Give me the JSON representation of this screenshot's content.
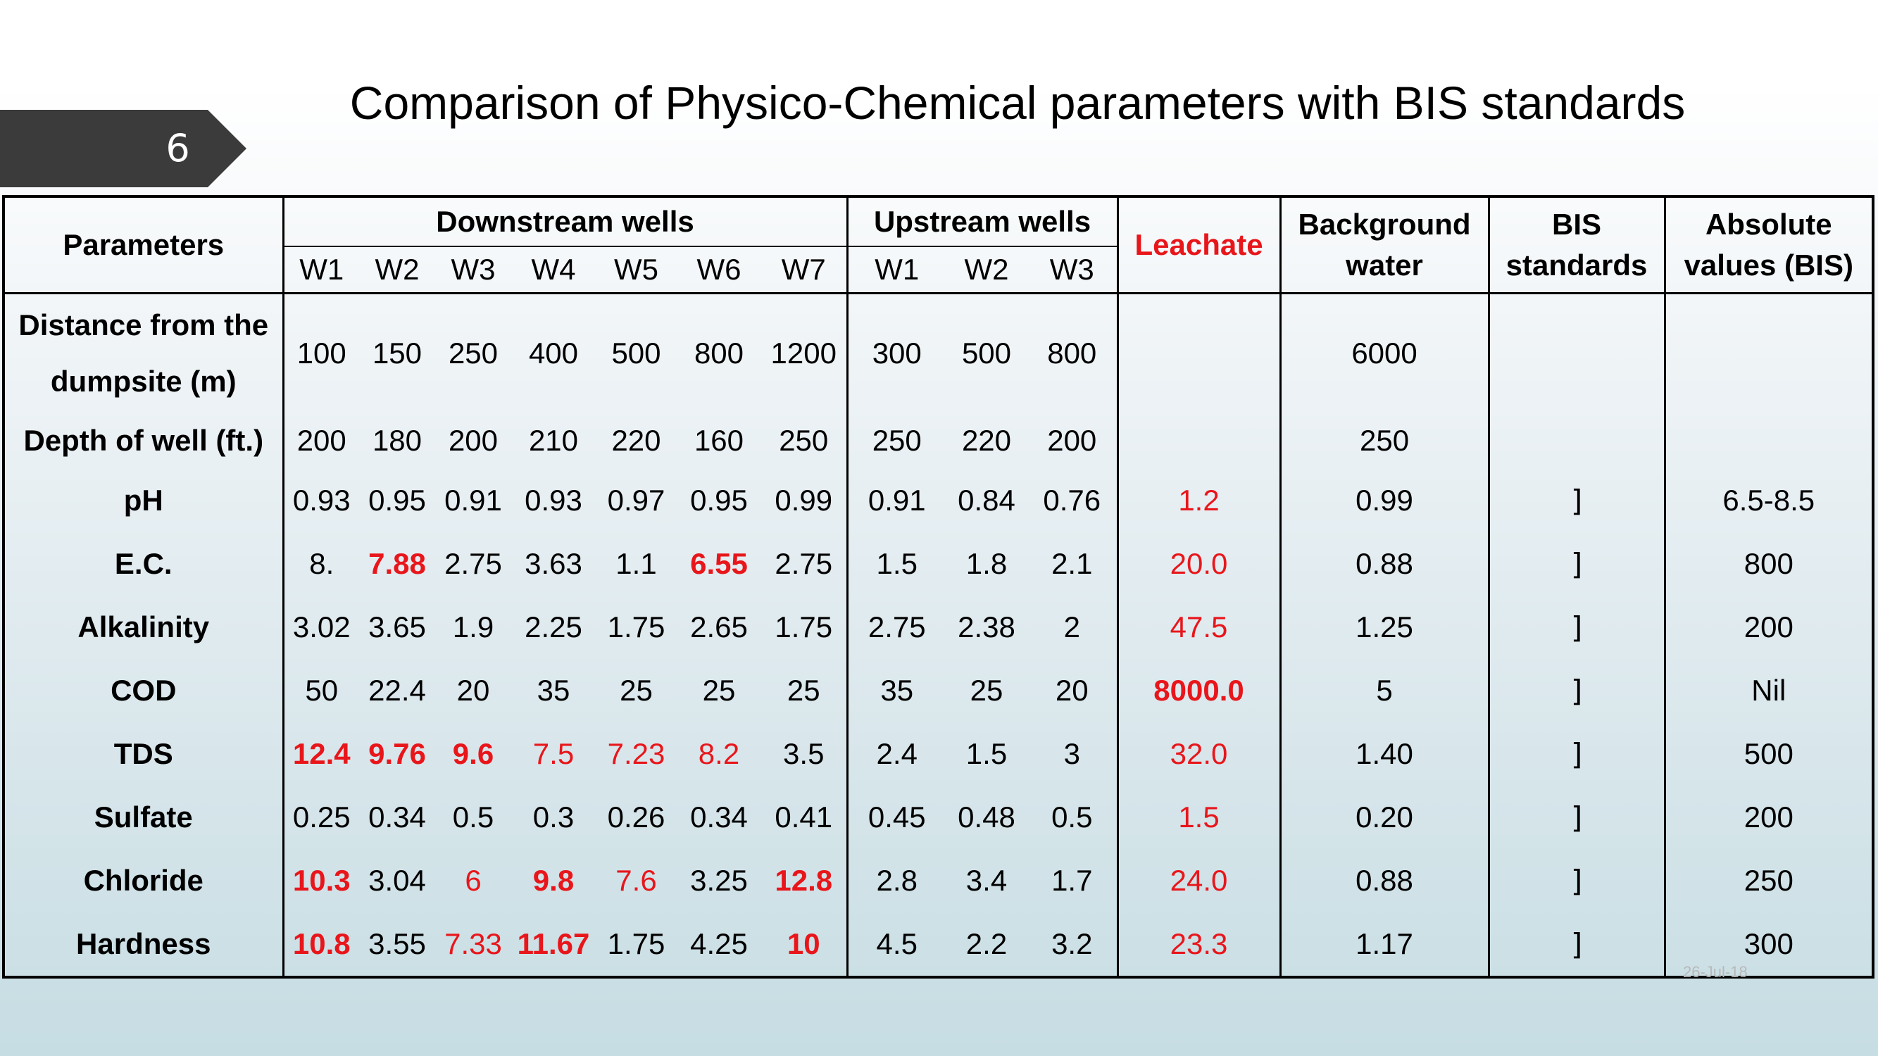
{
  "slide": {
    "number": "6",
    "title": "Comparison of Physico-Chemical parameters with BIS standards",
    "date": "26-Jul-18"
  },
  "colors": {
    "highlight": "#e8161b",
    "badge": "#3b3b3b"
  },
  "table": {
    "group_headers": {
      "parameters": "Parameters",
      "downstream": "Downstream wells",
      "upstream": "Upstream wells",
      "leachate": "Leachate",
      "background": "Background water",
      "bis": "BIS standards",
      "absolute": "Absolute values (BIS)"
    },
    "downstream_wells": [
      "W1",
      "W2",
      "W3",
      "W4",
      "W5",
      "W6",
      "W7"
    ],
    "upstream_wells": [
      "W1",
      "W2",
      "W3"
    ],
    "rows": [
      {
        "param": "Distance from the dumpsite (m)",
        "down": [
          "100",
          "150",
          "250",
          "400",
          "500",
          "800",
          "1200"
        ],
        "up": [
          "300",
          "500",
          "800"
        ],
        "leachate": "",
        "background": "6000",
        "bis": "",
        "absolute": ""
      },
      {
        "param": "Depth of well (ft.)",
        "down": [
          "200",
          "180",
          "200",
          "210",
          "220",
          "160",
          "250"
        ],
        "up": [
          "250",
          "220",
          "200"
        ],
        "leachate": "",
        "background": "250",
        "bis": "",
        "absolute": ""
      },
      {
        "param": "pH",
        "down": [
          "0.93",
          "0.95",
          "0.91",
          "0.93",
          "0.97",
          "0.95",
          "0.99"
        ],
        "up": [
          "0.91",
          "0.84",
          "0.76"
        ],
        "leachate": "1.2",
        "background": "0.99",
        "bis": "]",
        "absolute": "6.5-8.5"
      },
      {
        "param": "E.C.",
        "down": [
          "8.",
          "7.88",
          "2.75",
          "3.63",
          "1.1",
          "6.55",
          "2.75"
        ],
        "up": [
          "1.5",
          "1.8",
          "2.1"
        ],
        "leachate": "20.0",
        "background": "0.88",
        "bis": "]",
        "absolute": "800"
      },
      {
        "param": "Alkalinity",
        "down": [
          "3.02",
          "3.65",
          "1.9",
          "2.25",
          "1.75",
          "2.65",
          "1.75"
        ],
        "up": [
          "2.75",
          "2.38",
          "2"
        ],
        "leachate": "47.5",
        "background": "1.25",
        "bis": "]",
        "absolute": "200"
      },
      {
        "param": "COD",
        "down": [
          "50",
          "22.4",
          "20",
          "35",
          "25",
          "25",
          "25"
        ],
        "up": [
          "35",
          "25",
          "20"
        ],
        "leachate": "8000.0",
        "background": "5",
        "bis": "]",
        "absolute": "Nil"
      },
      {
        "param": "TDS",
        "down": [
          "12.4",
          "9.76",
          "9.6",
          "7.5",
          "7.23",
          "8.2",
          "3.5"
        ],
        "up": [
          "2.4",
          "1.5",
          "3"
        ],
        "leachate": "32.0",
        "background": "1.40",
        "bis": "]",
        "absolute": "500"
      },
      {
        "param": "Sulfate",
        "down": [
          "0.25",
          "0.34",
          "0.5",
          "0.3",
          "0.26",
          "0.34",
          "0.41"
        ],
        "up": [
          "0.45",
          "0.48",
          "0.5"
        ],
        "leachate": "1.5",
        "background": "0.20",
        "bis": "]",
        "absolute": "200"
      },
      {
        "param": "Chloride",
        "down": [
          "10.3",
          "3.04",
          "6",
          "9.8",
          "7.6",
          "3.25",
          "12.8"
        ],
        "up": [
          "2.8",
          "3.4",
          "1.7"
        ],
        "leachate": "24.0",
        "background": "0.88",
        "bis": "]",
        "absolute": "250"
      },
      {
        "param": "Hardness",
        "down": [
          "10.8",
          "3.55",
          "7.33",
          "11.67",
          "1.75",
          "4.25",
          "10"
        ],
        "up": [
          "4.5",
          "2.2",
          "3.2"
        ],
        "leachate": "23.3",
        "background": "1.17",
        "bis": "]",
        "absolute": "300"
      }
    ]
  }
}
